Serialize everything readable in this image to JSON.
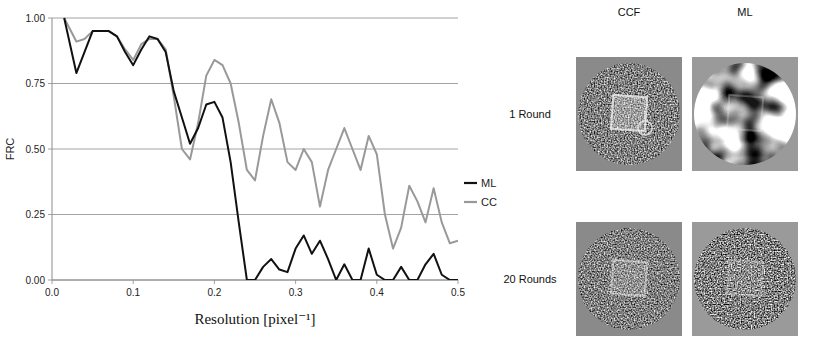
{
  "chart_data": {
    "type": "line",
    "x": [
      0.015,
      0.03,
      0.04,
      0.05,
      0.06,
      0.07,
      0.08,
      0.09,
      0.1,
      0.11,
      0.12,
      0.13,
      0.14,
      0.15,
      0.16,
      0.17,
      0.18,
      0.19,
      0.2,
      0.21,
      0.22,
      0.23,
      0.24,
      0.25,
      0.26,
      0.27,
      0.28,
      0.29,
      0.3,
      0.31,
      0.32,
      0.33,
      0.34,
      0.35,
      0.36,
      0.37,
      0.38,
      0.39,
      0.4,
      0.41,
      0.42,
      0.43,
      0.44,
      0.45,
      0.46,
      0.47,
      0.48,
      0.49,
      0.5
    ],
    "series": [
      {
        "name": "ML",
        "color": "#111111",
        "values": [
          1.0,
          0.79,
          0.87,
          0.95,
          0.95,
          0.95,
          0.93,
          0.87,
          0.82,
          0.88,
          0.93,
          0.92,
          0.87,
          0.72,
          0.62,
          0.52,
          0.58,
          0.67,
          0.68,
          0.62,
          0.45,
          0.22,
          0.0,
          0.0,
          0.05,
          0.08,
          0.04,
          0.03,
          0.12,
          0.17,
          0.1,
          0.15,
          0.08,
          0.0,
          0.06,
          0.0,
          0.0,
          0.12,
          0.02,
          0.0,
          0.0,
          0.05,
          0.0,
          0.0,
          0.06,
          0.1,
          0.02,
          0.0,
          0.0
        ]
      },
      {
        "name": "CC",
        "color": "#999999",
        "values": [
          1.0,
          0.91,
          0.92,
          0.95,
          0.95,
          0.95,
          0.93,
          0.88,
          0.84,
          0.9,
          0.92,
          0.92,
          0.88,
          0.7,
          0.5,
          0.46,
          0.6,
          0.78,
          0.84,
          0.82,
          0.75,
          0.6,
          0.42,
          0.38,
          0.55,
          0.69,
          0.6,
          0.45,
          0.42,
          0.5,
          0.45,
          0.28,
          0.42,
          0.5,
          0.58,
          0.5,
          0.42,
          0.55,
          0.48,
          0.25,
          0.12,
          0.2,
          0.36,
          0.3,
          0.22,
          0.35,
          0.22,
          0.14,
          0.15
        ]
      }
    ],
    "x_label": "Resolution [pixel⁻¹]",
    "y_label": "FRC",
    "xlim": [
      0,
      0.5
    ],
    "ylim": [
      0,
      1
    ],
    "xticks": [
      {
        "value": 0,
        "label": "0.0"
      },
      {
        "value": 0.1,
        "label": "0.1"
      },
      {
        "value": 0.2,
        "label": "0.2"
      },
      {
        "value": 0.3,
        "label": "0.3"
      },
      {
        "value": 0.4,
        "label": "0.4"
      },
      {
        "value": 0.5,
        "label": "0.5"
      }
    ],
    "yticks": [
      {
        "value": 0,
        "label": "0.00"
      },
      {
        "value": 0.25,
        "label": "0.25"
      },
      {
        "value": 0.5,
        "label": "0.50"
      },
      {
        "value": 0.75,
        "label": "0.75"
      },
      {
        "value": 1,
        "label": "1.00"
      }
    ],
    "grid": true,
    "legend": "right"
  },
  "panels": {
    "columns": [
      "CCF",
      "ML"
    ],
    "rows": [
      "1 Round",
      "20 Rounds"
    ]
  }
}
